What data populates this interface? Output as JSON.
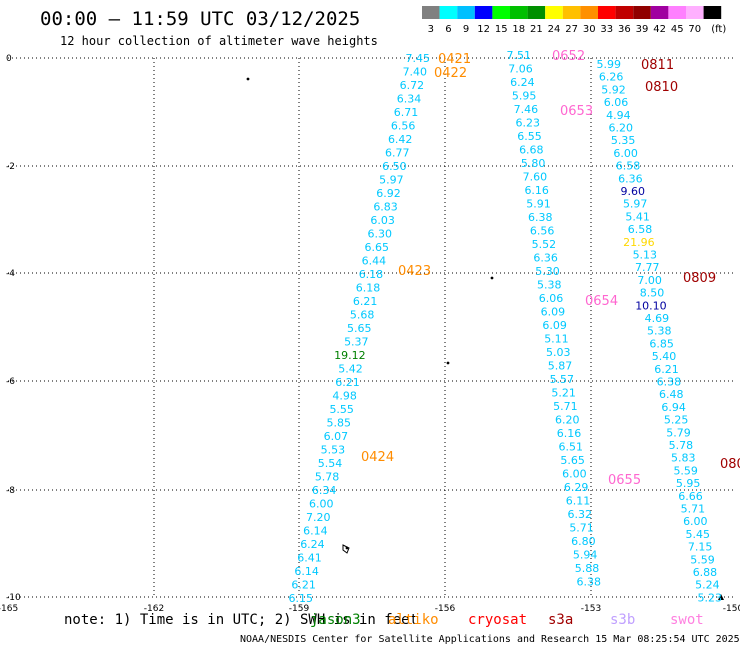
{
  "header": {
    "title": "00:00 — 11:59 UTC 03/12/2025",
    "subtitle": "12 hour collection of altimeter wave heights"
  },
  "legend": {
    "unit": "(ft)",
    "bins": [
      {
        "label": "3",
        "color": "#808080"
      },
      {
        "label": "6",
        "color": "#00ffff"
      },
      {
        "label": "9",
        "color": "#00c0ff"
      },
      {
        "label": "12",
        "color": "#0000ff"
      },
      {
        "label": "15",
        "color": "#00ff00"
      },
      {
        "label": "18",
        "color": "#00c000"
      },
      {
        "label": "21",
        "color": "#009000"
      },
      {
        "label": "24",
        "color": "#ffff00"
      },
      {
        "label": "27",
        "color": "#ffc000"
      },
      {
        "label": "30",
        "color": "#ff9000"
      },
      {
        "label": "33",
        "color": "#ff0000"
      },
      {
        "label": "36",
        "color": "#c00000"
      },
      {
        "label": "39",
        "color": "#900000"
      },
      {
        "label": "42",
        "color": "#a000a0"
      },
      {
        "label": "45",
        "color": "#ff80ff"
      },
      {
        "label": "70",
        "color": "#ffb0ff"
      },
      {
        "label": "",
        "color": "#000000"
      }
    ]
  },
  "axes": {
    "lon_ticks": [
      "-165",
      "-162",
      "-159",
      "-156",
      "-153",
      "-150"
    ],
    "lat_ticks": [
      "0",
      "-2",
      "-4",
      "-6",
      "-8",
      "-10"
    ]
  },
  "colors": {
    "cyan": "#00c8ff",
    "dark_cyan": "#00a0ff",
    "navy": "#0000a0",
    "olive": "#008000",
    "yellow": "#ffd800",
    "orange": "#ff8c00",
    "pink": "#ff66d0",
    "maroon": "#a00000"
  },
  "tracks": [
    {
      "passes": [
        {
          "label": "0421",
          "color": "orange"
        },
        {
          "label": "0422",
          "color": "orange"
        },
        {
          "label": "0423",
          "color": "orange"
        },
        {
          "label": "0424",
          "color": "orange"
        }
      ],
      "values": [
        {
          "v": "7.45",
          "c": "cyan"
        },
        {
          "v": "7.40",
          "c": "cyan"
        },
        {
          "v": "6.72",
          "c": "cyan"
        },
        {
          "v": "6.34",
          "c": "cyan"
        },
        {
          "v": "6.71",
          "c": "cyan"
        },
        {
          "v": "6.56",
          "c": "cyan"
        },
        {
          "v": "6.42",
          "c": "cyan"
        },
        {
          "v": "6.77",
          "c": "cyan"
        },
        {
          "v": "6.50",
          "c": "cyan"
        },
        {
          "v": "5.97",
          "c": "cyan"
        },
        {
          "v": "6.92",
          "c": "cyan"
        },
        {
          "v": "6.83",
          "c": "cyan"
        },
        {
          "v": "6.03",
          "c": "cyan"
        },
        {
          "v": "6.30",
          "c": "cyan"
        },
        {
          "v": "6.65",
          "c": "cyan"
        },
        {
          "v": "6.44",
          "c": "cyan"
        },
        {
          "v": "6.18",
          "c": "cyan"
        },
        {
          "v": "6.18",
          "c": "cyan"
        },
        {
          "v": "6.21",
          "c": "cyan"
        },
        {
          "v": "5.68",
          "c": "cyan"
        },
        {
          "v": "5.65",
          "c": "cyan"
        },
        {
          "v": "5.37",
          "c": "cyan"
        },
        {
          "v": "19.12",
          "c": "olive"
        },
        {
          "v": "5.42",
          "c": "cyan"
        },
        {
          "v": "6.21",
          "c": "cyan"
        },
        {
          "v": "4.98",
          "c": "cyan"
        },
        {
          "v": "5.55",
          "c": "cyan"
        },
        {
          "v": "5.85",
          "c": "cyan"
        },
        {
          "v": "6.07",
          "c": "cyan"
        },
        {
          "v": "5.53",
          "c": "cyan"
        },
        {
          "v": "5.54",
          "c": "cyan"
        },
        {
          "v": "5.78",
          "c": "cyan"
        },
        {
          "v": "6.34",
          "c": "cyan"
        },
        {
          "v": "6.00",
          "c": "cyan"
        },
        {
          "v": "7.20",
          "c": "cyan"
        },
        {
          "v": "6.14",
          "c": "cyan"
        },
        {
          "v": "6.24",
          "c": "cyan"
        },
        {
          "v": "6.41",
          "c": "cyan"
        },
        {
          "v": "6.14",
          "c": "cyan"
        },
        {
          "v": "6.21",
          "c": "cyan"
        },
        {
          "v": "6.15",
          "c": "cyan"
        }
      ]
    },
    {
      "passes": [
        {
          "label": "0652",
          "color": "pink"
        },
        {
          "label": "0653",
          "color": "pink"
        },
        {
          "label": "0654",
          "color": "pink"
        },
        {
          "label": "0655",
          "color": "pink"
        }
      ],
      "values": [
        {
          "v": "7.51",
          "c": "cyan"
        },
        {
          "v": "7.06",
          "c": "cyan"
        },
        {
          "v": "6.24",
          "c": "cyan"
        },
        {
          "v": "5.95",
          "c": "cyan"
        },
        {
          "v": "7.46",
          "c": "cyan"
        },
        {
          "v": "6.23",
          "c": "cyan"
        },
        {
          "v": "6.55",
          "c": "cyan"
        },
        {
          "v": "6.68",
          "c": "cyan"
        },
        {
          "v": "5.80",
          "c": "cyan"
        },
        {
          "v": "7.60",
          "c": "cyan"
        },
        {
          "v": "6.16",
          "c": "cyan"
        },
        {
          "v": "5.91",
          "c": "cyan"
        },
        {
          "v": "6.38",
          "c": "cyan"
        },
        {
          "v": "6.56",
          "c": "cyan"
        },
        {
          "v": "5.52",
          "c": "cyan"
        },
        {
          "v": "6.36",
          "c": "cyan"
        },
        {
          "v": "5.30",
          "c": "cyan"
        },
        {
          "v": "5.38",
          "c": "cyan"
        },
        {
          "v": "6.06",
          "c": "cyan"
        },
        {
          "v": "6.09",
          "c": "cyan"
        },
        {
          "v": "6.09",
          "c": "cyan"
        },
        {
          "v": "5.11",
          "c": "cyan"
        },
        {
          "v": "5.03",
          "c": "cyan"
        },
        {
          "v": "5.87",
          "c": "cyan"
        },
        {
          "v": "5.57",
          "c": "cyan"
        },
        {
          "v": "5.21",
          "c": "cyan"
        },
        {
          "v": "5.71",
          "c": "cyan"
        },
        {
          "v": "6.20",
          "c": "cyan"
        },
        {
          "v": "6.16",
          "c": "cyan"
        },
        {
          "v": "6.51",
          "c": "cyan"
        },
        {
          "v": "5.65",
          "c": "cyan"
        },
        {
          "v": "6.00",
          "c": "cyan"
        },
        {
          "v": "6.29",
          "c": "cyan"
        },
        {
          "v": "6.11",
          "c": "cyan"
        },
        {
          "v": "6.32",
          "c": "cyan"
        },
        {
          "v": "5.71",
          "c": "cyan"
        },
        {
          "v": "6.80",
          "c": "cyan"
        },
        {
          "v": "5.94",
          "c": "cyan"
        },
        {
          "v": "5.88",
          "c": "cyan"
        },
        {
          "v": "6.38",
          "c": "cyan"
        }
      ]
    },
    {
      "passes": [
        {
          "label": "0811",
          "color": "maroon"
        },
        {
          "label": "0810",
          "color": "maroon"
        },
        {
          "label": "0809",
          "color": "maroon"
        },
        {
          "label": "080",
          "color": "maroon"
        }
      ],
      "values": [
        {
          "v": "5.99",
          "c": "cyan"
        },
        {
          "v": "6.26",
          "c": "cyan"
        },
        {
          "v": "5.92",
          "c": "cyan"
        },
        {
          "v": "6.06",
          "c": "cyan"
        },
        {
          "v": "4.94",
          "c": "cyan"
        },
        {
          "v": "6.20",
          "c": "cyan"
        },
        {
          "v": "5.35",
          "c": "cyan"
        },
        {
          "v": "6.00",
          "c": "cyan"
        },
        {
          "v": "6.58",
          "c": "cyan"
        },
        {
          "v": "6.36",
          "c": "cyan"
        },
        {
          "v": "9.60",
          "c": "navy"
        },
        {
          "v": "5.97",
          "c": "cyan"
        },
        {
          "v": "5.41",
          "c": "cyan"
        },
        {
          "v": "6.58",
          "c": "cyan"
        },
        {
          "v": "21.96",
          "c": "yellow"
        },
        {
          "v": "5.13",
          "c": "cyan"
        },
        {
          "v": "7.77",
          "c": "cyan"
        },
        {
          "v": "7.00",
          "c": "cyan"
        },
        {
          "v": "8.50",
          "c": "cyan"
        },
        {
          "v": "10.10",
          "c": "navy"
        },
        {
          "v": "4.69",
          "c": "cyan"
        },
        {
          "v": "5.38",
          "c": "cyan"
        },
        {
          "v": "6.85",
          "c": "cyan"
        },
        {
          "v": "5.40",
          "c": "cyan"
        },
        {
          "v": "6.21",
          "c": "cyan"
        },
        {
          "v": "6.38",
          "c": "cyan"
        },
        {
          "v": "6.48",
          "c": "cyan"
        },
        {
          "v": "6.94",
          "c": "cyan"
        },
        {
          "v": "5.25",
          "c": "cyan"
        },
        {
          "v": "5.79",
          "c": "cyan"
        },
        {
          "v": "5.78",
          "c": "cyan"
        },
        {
          "v": "5.83",
          "c": "cyan"
        },
        {
          "v": "5.59",
          "c": "cyan"
        },
        {
          "v": "5.95",
          "c": "cyan"
        },
        {
          "v": "6.66",
          "c": "cyan"
        },
        {
          "v": "5.71",
          "c": "cyan"
        },
        {
          "v": "6.00",
          "c": "cyan"
        },
        {
          "v": "5.45",
          "c": "cyan"
        },
        {
          "v": "7.15",
          "c": "cyan"
        },
        {
          "v": "5.59",
          "c": "cyan"
        },
        {
          "v": "6.88",
          "c": "cyan"
        },
        {
          "v": "5.24",
          "c": "cyan"
        },
        {
          "v": "5.23",
          "c": "cyan"
        }
      ]
    }
  ],
  "note": "note: 1) Time is in UTC; 2) SWH is in feet",
  "missions": [
    {
      "label": "jason3",
      "color": "#008000"
    },
    {
      "label": "altiko",
      "color": "#ff8c00"
    },
    {
      "label": "cryosat",
      "color": "#ff0000"
    },
    {
      "label": "s3a",
      "color": "#a00000"
    },
    {
      "label": "s3b",
      "color": "#c0a0ff"
    },
    {
      "label": "swot",
      "color": "#ff80e0"
    }
  ],
  "credit": "NOAA/NESDIS Center for Satellite Applications and Research    15 Mar 08:25:54 UTC 2025"
}
